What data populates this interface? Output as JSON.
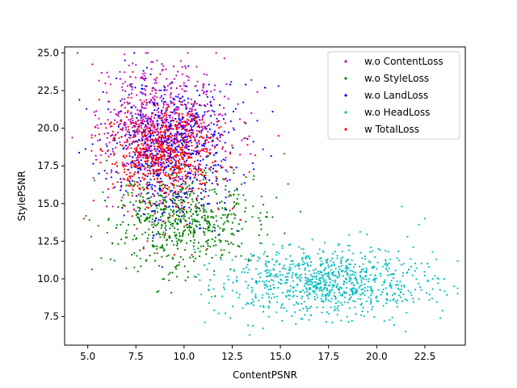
{
  "chart_data": {
    "type": "scatter",
    "title": "",
    "xlabel": "ContentPSNR",
    "ylabel": "StylePSNR",
    "xlim": [
      3.8,
      24.6
    ],
    "ylim": [
      5.6,
      25.4
    ],
    "xticks": [
      5.0,
      7.5,
      10.0,
      12.5,
      15.0,
      17.5,
      20.0,
      22.5
    ],
    "yticks": [
      7.5,
      10.0,
      12.5,
      15.0,
      17.5,
      20.0,
      22.5,
      25.0
    ],
    "xtick_labels": [
      "5.0",
      "7.5",
      "10.0",
      "12.5",
      "15.0",
      "17.5",
      "20.0",
      "22.5"
    ],
    "ytick_labels": [
      "7.5",
      "10.0",
      "12.5",
      "15.0",
      "17.5",
      "20.0",
      "22.5",
      "25.0"
    ],
    "grid": false,
    "legend_position": "top-right",
    "series": [
      {
        "name": "w.o ContentLoss",
        "color": "#bf00bf",
        "count": 700,
        "points": [
          [
            7.5,
            24.2
          ],
          [
            8.3,
            24.4
          ],
          [
            8.6,
            24.5
          ],
          [
            6.0,
            23.7
          ],
          [
            9.6,
            23.5
          ],
          [
            10.7,
            23.1
          ],
          [
            13.5,
            23.2
          ],
          [
            11.0,
            22.8
          ],
          [
            12.1,
            22.1
          ],
          [
            12.8,
            21.6
          ],
          [
            13.5,
            21.0
          ],
          [
            12.9,
            20.6
          ],
          [
            6.6,
            20.8
          ],
          [
            5.9,
            20.3
          ],
          [
            6.4,
            19.3
          ],
          [
            7.0,
            18.6
          ],
          [
            6.0,
            17.0
          ],
          [
            5.3,
            16.7
          ],
          [
            13.0,
            19.2
          ],
          [
            11.8,
            20.9
          ],
          [
            7.8,
            23.4
          ],
          [
            8.9,
            23.9
          ],
          [
            10.1,
            24.0
          ],
          [
            9.0,
            22.5
          ],
          [
            8.0,
            22.2
          ],
          [
            9.5,
            21.6
          ],
          [
            8.6,
            21.2
          ],
          [
            7.4,
            21.5
          ],
          [
            10.4,
            21.3
          ],
          [
            11.2,
            21.1
          ],
          [
            9.8,
            20.3
          ],
          [
            8.2,
            20.0
          ],
          [
            7.0,
            19.6
          ],
          [
            10.9,
            19.7
          ],
          [
            11.6,
            18.8
          ],
          [
            12.4,
            18.4
          ],
          [
            9.1,
            18.9
          ],
          [
            8.5,
            17.6
          ],
          [
            7.6,
            16.4
          ],
          [
            6.8,
            15.4
          ],
          [
            6.3,
            14.8
          ],
          [
            10.2,
            17.1
          ],
          [
            12.0,
            17.4
          ],
          [
            13.8,
            22.4
          ]
        ],
        "cluster": {
          "cx": 8.9,
          "cy": 20.2,
          "sx": 1.5,
          "sy": 2.0
        }
      },
      {
        "name": "w.o StyleLoss",
        "color": "#008000",
        "count": 650,
        "points": [
          [
            15.2,
            18.3
          ],
          [
            15.4,
            16.3
          ],
          [
            14.8,
            15.4
          ],
          [
            14.6,
            14.1
          ],
          [
            12.8,
            12.2
          ],
          [
            12.3,
            13.8
          ],
          [
            13.2,
            14.7
          ],
          [
            13.9,
            12.9
          ],
          [
            10.2,
            10.1
          ],
          [
            9.2,
            10.3
          ],
          [
            7.6,
            10.5
          ],
          [
            7.0,
            10.7
          ],
          [
            8.5,
            11.2
          ],
          [
            10.8,
            11.5
          ],
          [
            11.6,
            12.5
          ],
          [
            12.0,
            11.6
          ],
          [
            6.1,
            14.0
          ],
          [
            5.9,
            15.2
          ],
          [
            7.0,
            16.2
          ],
          [
            8.0,
            15.0
          ],
          [
            9.0,
            14.6
          ],
          [
            10.0,
            15.7
          ],
          [
            11.0,
            16.6
          ],
          [
            8.6,
            13.6
          ],
          [
            9.6,
            12.7
          ],
          [
            10.5,
            13.2
          ],
          [
            11.4,
            14.1
          ],
          [
            12.6,
            15.1
          ],
          [
            13.6,
            16.6
          ],
          [
            14.0,
            13.6
          ],
          [
            8.2,
            16.4
          ],
          [
            9.4,
            16.9
          ]
        ],
        "cluster": {
          "cx": 10.0,
          "cy": 14.0,
          "sx": 1.8,
          "sy": 1.7
        }
      },
      {
        "name": "w.o LandLoss",
        "color": "#0000ff",
        "count": 650,
        "points": [
          [
            7.2,
            22.9
          ],
          [
            8.0,
            22.8
          ],
          [
            9.0,
            22.7
          ],
          [
            10.1,
            22.8
          ],
          [
            11.3,
            22.9
          ],
          [
            12.4,
            22.9
          ],
          [
            13.2,
            22.9
          ],
          [
            14.2,
            22.7
          ],
          [
            14.9,
            22.8
          ],
          [
            5.8,
            22.4
          ],
          [
            14.6,
            21.1
          ],
          [
            13.8,
            20.5
          ],
          [
            12.6,
            19.9
          ],
          [
            11.4,
            19.4
          ],
          [
            9.9,
            20.6
          ],
          [
            8.6,
            20.3
          ],
          [
            7.4,
            19.8
          ],
          [
            6.6,
            20.1
          ],
          [
            6.9,
            17.6
          ],
          [
            8.2,
            17.2
          ],
          [
            9.4,
            17.0
          ],
          [
            10.6,
            17.3
          ],
          [
            11.9,
            17.5
          ],
          [
            13.1,
            16.9
          ],
          [
            9.6,
            15.4
          ],
          [
            10.9,
            14.9
          ],
          [
            12.2,
            14.6
          ],
          [
            8.8,
            13.9
          ],
          [
            10.3,
            13.7
          ],
          [
            11.6,
            13.2
          ],
          [
            7.9,
            14.3
          ],
          [
            6.4,
            16.1
          ],
          [
            14.1,
            18.6
          ],
          [
            13.6,
            19.1
          ]
        ],
        "cluster": {
          "cx": 9.3,
          "cy": 18.7,
          "sx": 1.6,
          "sy": 2.2
        }
      },
      {
        "name": "w.o HeadLoss",
        "color": "#00bfbf",
        "count": 900,
        "points": [
          [
            21.3,
            14.8
          ],
          [
            22.5,
            14.0
          ],
          [
            22.2,
            13.6
          ],
          [
            21.6,
            12.8
          ],
          [
            21.9,
            12.1
          ],
          [
            22.9,
            11.8
          ],
          [
            23.1,
            11.3
          ],
          [
            22.9,
            10.0
          ],
          [
            23.2,
            10.0
          ],
          [
            23.5,
            10.0
          ],
          [
            22.7,
            10.8
          ],
          [
            23.3,
            7.4
          ],
          [
            21.5,
            6.5
          ],
          [
            20.4,
            7.2
          ],
          [
            19.2,
            7.6
          ],
          [
            18.0,
            7.9
          ],
          [
            16.9,
            8.1
          ],
          [
            15.8,
            7.0
          ],
          [
            14.4,
            7.5
          ],
          [
            13.5,
            8.4
          ],
          [
            12.4,
            7.4
          ],
          [
            11.8,
            7.7
          ],
          [
            11.3,
            8.4
          ],
          [
            12.1,
            9.3
          ],
          [
            12.6,
            10.6
          ],
          [
            13.2,
            11.3
          ],
          [
            14.2,
            11.8
          ],
          [
            15.1,
            12.2
          ],
          [
            16.1,
            12.0
          ],
          [
            17.3,
            12.4
          ],
          [
            18.6,
            12.2
          ],
          [
            19.7,
            12.1
          ],
          [
            20.6,
            11.8
          ],
          [
            21.4,
            11.0
          ],
          [
            16.6,
            9.8
          ],
          [
            17.7,
            10.3
          ],
          [
            18.8,
            9.6
          ],
          [
            15.6,
            10.1
          ],
          [
            19.8,
            9.2
          ],
          [
            20.7,
            9.7
          ],
          [
            14.7,
            9.4
          ],
          [
            13.8,
            9.8
          ]
        ],
        "cluster": {
          "cx": 17.5,
          "cy": 9.7,
          "sx": 2.6,
          "sy": 1.1
        }
      },
      {
        "name": "w TotalLoss",
        "color": "#ff0000",
        "count": 700,
        "points": [
          [
            4.8,
            14.0
          ],
          [
            5.3,
            15.2
          ],
          [
            5.2,
            18.5
          ],
          [
            5.6,
            19.6
          ],
          [
            6.2,
            19.5
          ],
          [
            13.3,
            18.9
          ],
          [
            13.7,
            18.2
          ],
          [
            14.9,
            19.5
          ],
          [
            13.4,
            17.1
          ],
          [
            12.4,
            18.3
          ],
          [
            11.6,
            17.8
          ],
          [
            10.6,
            18.7
          ],
          [
            9.6,
            18.2
          ],
          [
            8.6,
            17.9
          ],
          [
            7.6,
            18.4
          ],
          [
            6.8,
            17.7
          ],
          [
            7.9,
            12.0
          ],
          [
            8.6,
            11.7
          ],
          [
            9.5,
            11.6
          ],
          [
            10.4,
            11.6
          ],
          [
            11.2,
            12.0
          ],
          [
            8.1,
            12.5
          ],
          [
            9.0,
            12.9
          ],
          [
            7.4,
            14.6
          ],
          [
            8.4,
            15.0
          ],
          [
            9.2,
            15.6
          ],
          [
            10.1,
            16.0
          ],
          [
            11.1,
            16.3
          ],
          [
            12.1,
            16.6
          ],
          [
            6.3,
            16.3
          ],
          [
            10.5,
            21.6
          ],
          [
            9.1,
            21.3
          ],
          [
            8.0,
            20.8
          ],
          [
            7.1,
            20.1
          ],
          [
            11.9,
            20.1
          ]
        ],
        "cluster": {
          "cx": 8.9,
          "cy": 18.4,
          "sx": 1.5,
          "sy": 1.6
        }
      }
    ]
  }
}
